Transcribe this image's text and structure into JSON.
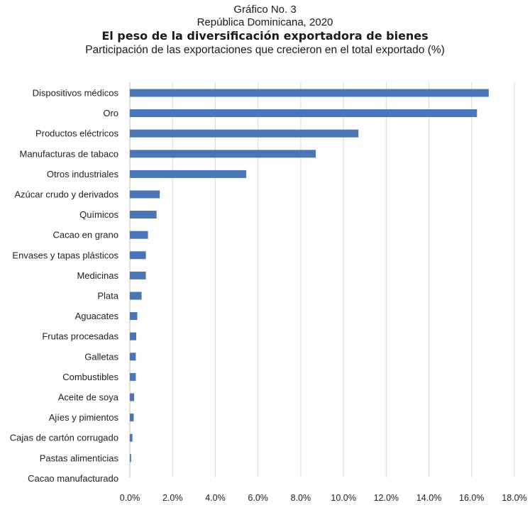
{
  "chart_data": {
    "type": "bar",
    "orientation": "horizontal",
    "title_lines": [
      "Gráfico No. 3",
      "República Dominicana, 2020",
      "El peso de la diversificación exportadora de bienes",
      "Participación de las exportaciones que crecieron en el total exportado (%)"
    ],
    "categories": [
      "Dispositivos médicos",
      "Oro",
      "Productos eléctricos",
      "Manufacturas de tabaco",
      "Otros industriales",
      "Azúcar crudo y derivados",
      "Químicos",
      "Cacao en grano",
      "Envases y tapas plásticos",
      "Medicinas",
      "Plata",
      "Aguacates",
      "Frutas procesadas",
      "Galletas",
      "Combustibles",
      "Aceite de soya",
      "Ajíes y pimientos",
      "Cajas de cartón corrugado",
      "Pastas alimenticias",
      "Cacao manufacturado"
    ],
    "values": [
      16.8,
      16.25,
      10.7,
      8.7,
      5.45,
      1.4,
      1.25,
      0.85,
      0.75,
      0.75,
      0.55,
      0.35,
      0.3,
      0.28,
      0.28,
      0.2,
      0.18,
      0.12,
      0.06,
      0.0
    ],
    "xlim": [
      0,
      18
    ],
    "x_ticks": [
      "0.0%",
      "2.0%",
      "4.0%",
      "6.0%",
      "8.0%",
      "10.0%",
      "12.0%",
      "14.0%",
      "16.0%",
      "18.0%"
    ],
    "grid": "vertical",
    "bar_color": "#4a76b7",
    "grid_color": "#d9d9d9"
  }
}
